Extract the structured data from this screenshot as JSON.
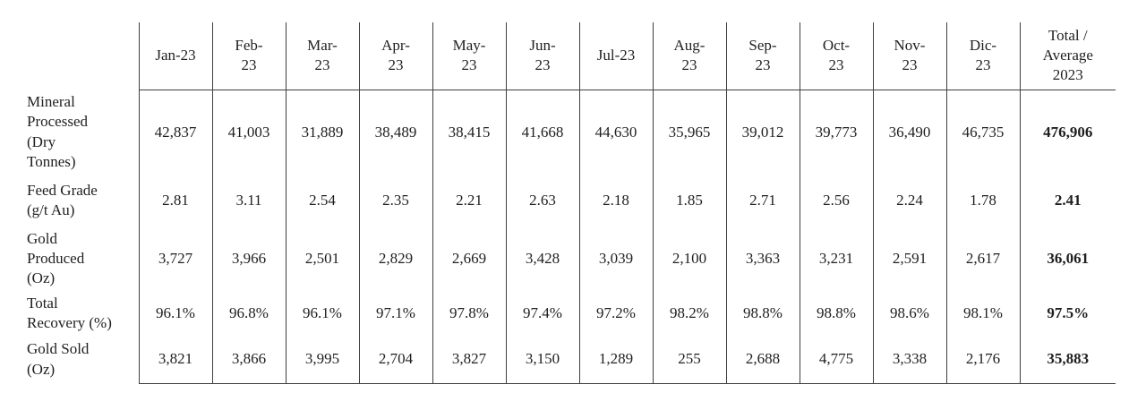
{
  "colors": {
    "border": "#3f3f3f",
    "text": "#1f1f1f",
    "background": "#ffffff"
  },
  "chart_data": {
    "type": "table",
    "column_headers": [
      "Jan-23",
      "Feb-\n23",
      "Mar-\n23",
      "Apr-\n23",
      "May-\n23",
      "Jun-\n23",
      "Jul-23",
      "Aug-\n23",
      "Sep-\n23",
      "Oct-\n23",
      "Nov-\n23",
      "Dic-\n23",
      "Total /\nAverage\n2023"
    ],
    "rows": [
      {
        "label": "Mineral\nProcessed\n (Dry\nTonnes)",
        "values": [
          "42,837",
          "41,003",
          "31,889",
          "38,489",
          "38,415",
          "41,668",
          "44,630",
          "35,965",
          "39,012",
          "39,773",
          "36,490",
          "46,735"
        ],
        "total": "476,906"
      },
      {
        "label": "Feed Grade\n(g/t Au)",
        "values": [
          "2.81",
          "3.11",
          "2.54",
          "2.35",
          "2.21",
          "2.63",
          "2.18",
          "1.85",
          "2.71",
          "2.56",
          "2.24",
          "1.78"
        ],
        "total": "2.41"
      },
      {
        "label": "Gold\nProduced\n(Oz)",
        "values": [
          "3,727",
          "3,966",
          "2,501",
          "2,829",
          "2,669",
          "3,428",
          "3,039",
          "2,100",
          "3,363",
          "3,231",
          "2,591",
          "2,617"
        ],
        "total": "36,061"
      },
      {
        "label": "Total\nRecovery (%)",
        "values": [
          "96.1%",
          "96.8%",
          "96.1%",
          "97.1%",
          "97.8%",
          "97.4%",
          "97.2%",
          "98.2%",
          "98.8%",
          "98.8%",
          "98.6%",
          "98.1%"
        ],
        "total": "97.5%"
      },
      {
        "label": "Gold Sold\n(Oz)",
        "values": [
          "3,821",
          "3,866",
          "3,995",
          "2,704",
          "3,827",
          "3,150",
          "1,289",
          "255",
          "2,688",
          "4,775",
          "3,338",
          "2,176"
        ],
        "total": "35,883"
      }
    ]
  }
}
